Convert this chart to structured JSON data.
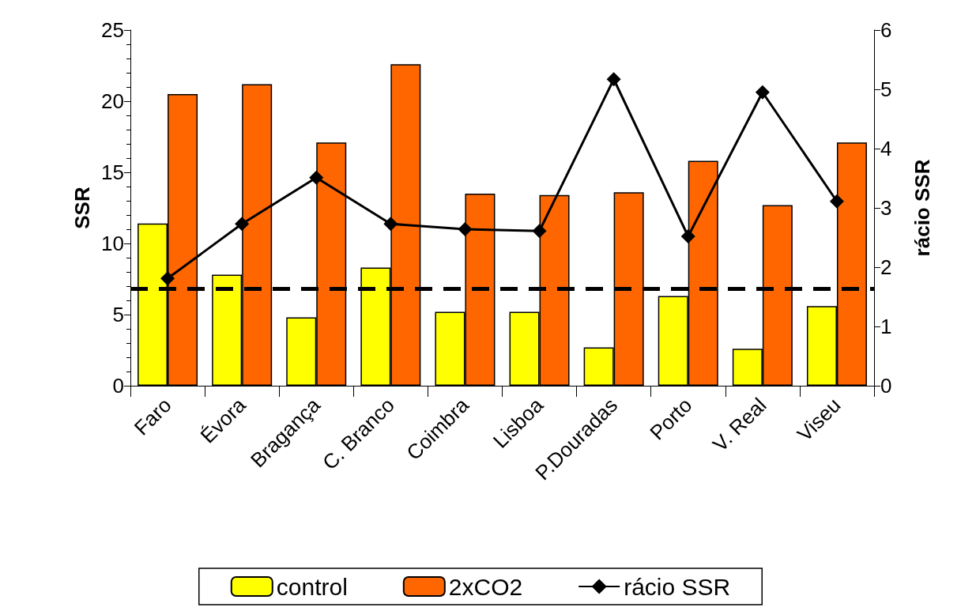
{
  "chart_data": {
    "type": "bar",
    "ylabel": "SSR",
    "y2label": "rácio SSR",
    "categories": [
      "Faro",
      "Évora",
      "Bragança",
      "C. Branco",
      "Coimbra",
      "Lisboa",
      "P.Douradas",
      "Porto",
      "V. Real",
      "Viseu"
    ],
    "series": [
      {
        "name": "control",
        "color": "#ffff00",
        "values": [
          11.4,
          7.8,
          4.8,
          8.3,
          5.2,
          5.2,
          2.7,
          6.3,
          2.6,
          5.6
        ]
      },
      {
        "name": "2xCO2",
        "color": "#ff6600",
        "values": [
          20.5,
          21.2,
          17.1,
          22.6,
          13.5,
          13.4,
          13.6,
          15.8,
          12.7,
          17.1
        ]
      },
      {
        "name": "rácio SSR",
        "type": "line",
        "axis": "y2",
        "color": "#000000",
        "marker": "diamond",
        "line_style": "solid",
        "values": [
          1.81,
          2.73,
          3.51,
          2.73,
          2.64,
          2.61,
          5.17,
          2.52,
          4.95,
          3.11
        ]
      }
    ],
    "ylim": [
      0,
      25
    ],
    "yticks": [
      0,
      5,
      10,
      15,
      20,
      25
    ],
    "y2lim": [
      0,
      6
    ],
    "y2ticks": [
      0,
      1,
      2,
      3,
      4,
      5,
      6
    ],
    "ref_lines": [
      {
        "axis": "y",
        "value": 6.8,
        "color": "#000000",
        "line_style": "dashed"
      }
    ],
    "grid": false,
    "legend": "bottom"
  }
}
